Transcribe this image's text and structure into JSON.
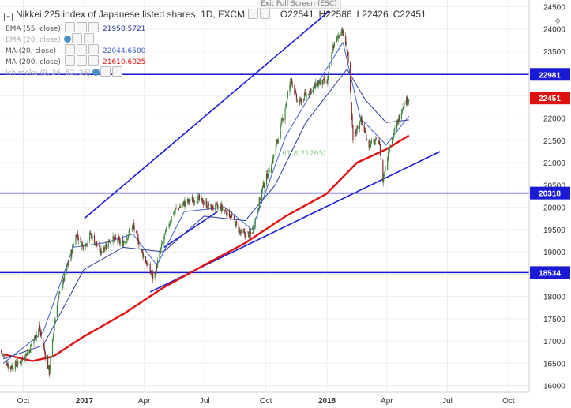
{
  "window": {
    "exit_fullscreen": "Exit Full Screen (ESC)"
  },
  "header": {
    "title": "Nikkei 225 index of Japanese listed shares, 1D, FXCM",
    "open": "O22541",
    "high": "H22586",
    "low": "L22426",
    "close": "C22451"
  },
  "indicators": [
    {
      "label": "EMA (55, close)",
      "value": "21958.5721",
      "color": "#2a3a9a"
    },
    {
      "label": "EMA (20, close)",
      "value": "",
      "color": "#aaaaaa"
    },
    {
      "label": "MA (20, close)",
      "value": "22044.6500",
      "color": "#3a5fcd"
    },
    {
      "label": "MA (200, close)",
      "value": "21610.6025",
      "color": "#e01010"
    },
    {
      "label": "Ichimoku (9, 26, 52, 26)",
      "value": "",
      "color": "#aaaaaa"
    }
  ],
  "price_badges": [
    {
      "label": "22981",
      "value": 22981,
      "color": "#1a1ad6"
    },
    {
      "label": "22451",
      "value": 22451,
      "color": "#e01010"
    },
    {
      "label": "20318",
      "value": 20318,
      "color": "#1a1ad6"
    },
    {
      "label": "18534",
      "value": 18534,
      "color": "#1a1ad6"
    }
  ],
  "fib_label": "61.8(21265)",
  "chart_data": {
    "type": "candlestick",
    "title": "Nikkei 225 index of Japanese listed shares, 1D, FXCM",
    "y_ticks": [
      16000,
      16500,
      17000,
      17500,
      18000,
      18500,
      19000,
      19500,
      20000,
      20500,
      21000,
      21500,
      22000,
      22500,
      23000,
      23500,
      24000,
      24500
    ],
    "ylim": [
      15850,
      24650
    ],
    "x_ticks": [
      "Oct",
      "2017",
      "Apr",
      "Jul",
      "Oct",
      "2018",
      "Apr",
      "Jul",
      "Oct"
    ],
    "x_tick_dates": [
      "2016-10-01",
      "2017-01-01",
      "2017-04-01",
      "2017-07-01",
      "2017-10-01",
      "2018-01-01",
      "2018-04-01",
      "2018-07-01",
      "2018-10-01"
    ],
    "xlim": [
      "2016-08-27",
      "2018-11-01"
    ],
    "price_path": [
      [
        "2016-08-27",
        16800
      ],
      [
        "2016-09-10",
        16400
      ],
      [
        "2016-09-25",
        16500
      ],
      [
        "2016-10-10",
        16800
      ],
      [
        "2016-10-25",
        17300
      ],
      [
        "2016-11-09",
        16300
      ],
      [
        "2016-11-20",
        17800
      ],
      [
        "2016-12-05",
        18600
      ],
      [
        "2016-12-20",
        19400
      ],
      [
        "2016-12-31",
        19100
      ],
      [
        "2017-01-10",
        19400
      ],
      [
        "2017-01-25",
        19000
      ],
      [
        "2017-02-10",
        19300
      ],
      [
        "2017-02-28",
        19200
      ],
      [
        "2017-03-15",
        19600
      ],
      [
        "2017-03-31",
        18900
      ],
      [
        "2017-04-15",
        18400
      ],
      [
        "2017-04-30",
        19300
      ],
      [
        "2017-05-15",
        19900
      ],
      [
        "2017-06-01",
        20100
      ],
      [
        "2017-06-20",
        20200
      ],
      [
        "2017-07-10",
        20000
      ],
      [
        "2017-07-25",
        20000
      ],
      [
        "2017-08-10",
        19800
      ],
      [
        "2017-08-25",
        19400
      ],
      [
        "2017-09-10",
        19400
      ],
      [
        "2017-09-25",
        20400
      ],
      [
        "2017-10-10",
        21000
      ],
      [
        "2017-10-25",
        21900
      ],
      [
        "2017-11-08",
        22900
      ],
      [
        "2017-11-18",
        22300
      ],
      [
        "2017-12-05",
        22600
      ],
      [
        "2017-12-20",
        22800
      ],
      [
        "2018-01-01",
        22800
      ],
      [
        "2018-01-10",
        23600
      ],
      [
        "2018-01-23",
        24000
      ],
      [
        "2018-02-01",
        23500
      ],
      [
        "2018-02-09",
        21500
      ],
      [
        "2018-02-20",
        22000
      ],
      [
        "2018-03-05",
        21400
      ],
      [
        "2018-03-20",
        21500
      ],
      [
        "2018-03-26",
        20600
      ],
      [
        "2018-04-05",
        21400
      ],
      [
        "2018-04-15",
        21800
      ],
      [
        "2018-04-25",
        22300
      ],
      [
        "2018-05-04",
        22451
      ]
    ],
    "series": [
      {
        "name": "MA (200, close)",
        "color": "#e01010",
        "points": [
          [
            "2016-09-01",
            16700
          ],
          [
            "2016-10-15",
            16550
          ],
          [
            "2016-11-15",
            16650
          ],
          [
            "2016-12-31",
            17100
          ],
          [
            "2017-02-28",
            17600
          ],
          [
            "2017-04-30",
            18200
          ],
          [
            "2017-06-30",
            18700
          ],
          [
            "2017-08-31",
            19200
          ],
          [
            "2017-10-31",
            19800
          ],
          [
            "2017-12-31",
            20300
          ],
          [
            "2018-02-15",
            21000
          ],
          [
            "2018-03-31",
            21300
          ],
          [
            "2018-05-04",
            21610
          ]
        ]
      },
      {
        "name": "EMA (55, close)",
        "color": "#2a3a9a",
        "points": [
          [
            "2016-09-01",
            16600
          ],
          [
            "2016-10-31",
            16900
          ],
          [
            "2016-12-31",
            18600
          ],
          [
            "2017-02-28",
            19100
          ],
          [
            "2017-04-30",
            19000
          ],
          [
            "2017-06-30",
            19800
          ],
          [
            "2017-08-31",
            19700
          ],
          [
            "2017-10-15",
            20500
          ],
          [
            "2017-11-30",
            21900
          ],
          [
            "2017-12-31",
            22500
          ],
          [
            "2018-01-31",
            23100
          ],
          [
            "2018-02-28",
            22400
          ],
          [
            "2018-03-31",
            21900
          ],
          [
            "2018-05-04",
            21958
          ]
        ]
      },
      {
        "name": "MA (20, close)",
        "color": "#3a5fcd",
        "points": [
          [
            "2016-09-01",
            16500
          ],
          [
            "2016-10-31",
            17200
          ],
          [
            "2016-12-15",
            19100
          ],
          [
            "2017-01-31",
            19200
          ],
          [
            "2017-03-15",
            19400
          ],
          [
            "2017-04-20",
            18700
          ],
          [
            "2017-05-31",
            19900
          ],
          [
            "2017-07-31",
            20000
          ],
          [
            "2017-09-10",
            19500
          ],
          [
            "2017-10-31",
            21600
          ],
          [
            "2017-12-10",
            22600
          ],
          [
            "2018-01-25",
            23700
          ],
          [
            "2018-02-20",
            22000
          ],
          [
            "2018-03-31",
            21400
          ],
          [
            "2018-05-04",
            22044
          ]
        ]
      }
    ],
    "horizontal_levels": [
      22981,
      20318,
      18534
    ],
    "trendlines": [
      [
        [
          "2017-01-01",
          19750
        ],
        [
          "2018-01-04",
          24400
        ]
      ],
      [
        [
          "2017-04-10",
          18100
        ],
        [
          "2018-06-20",
          21250
        ]
      ],
      [
        [
          "2017-05-01",
          19100
        ],
        [
          "2017-07-20",
          19900
        ]
      ]
    ]
  }
}
